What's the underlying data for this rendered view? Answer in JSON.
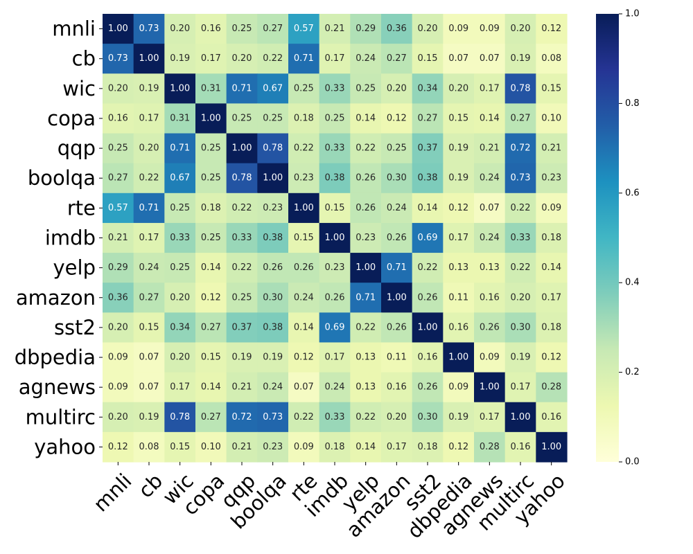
{
  "chart_data": {
    "type": "heatmap",
    "title": "",
    "xlabel": "",
    "ylabel": "",
    "colormap": "YlGnBu",
    "vmin": 0.0,
    "vmax": 1.0,
    "colorbar_ticks": [
      0.0,
      0.2,
      0.4,
      0.6,
      0.8,
      1.0
    ],
    "colorbar_tick_labels": [
      "0.0",
      "0.2",
      "0.4",
      "0.6",
      "0.8",
      "1.0"
    ],
    "rows": [
      "mnli",
      "cb",
      "wic",
      "copa",
      "qqp",
      "boolqa",
      "rte",
      "imdb",
      "yelp",
      "amazon",
      "sst2",
      "dbpedia",
      "agnews",
      "multirc",
      "yahoo"
    ],
    "columns": [
      "mnli",
      "cb",
      "wic",
      "copa",
      "qqp",
      "boolqa",
      "rte",
      "imdb",
      "yelp",
      "amazon",
      "sst2",
      "dbpedia",
      "agnews",
      "multirc",
      "yahoo"
    ],
    "values": [
      [
        1.0,
        0.73,
        0.2,
        0.16,
        0.25,
        0.27,
        0.57,
        0.21,
        0.29,
        0.36,
        0.2,
        0.09,
        0.09,
        0.2,
        0.12
      ],
      [
        0.73,
        1.0,
        0.19,
        0.17,
        0.2,
        0.22,
        0.71,
        0.17,
        0.24,
        0.27,
        0.15,
        0.07,
        0.07,
        0.19,
        0.08
      ],
      [
        0.2,
        0.19,
        1.0,
        0.31,
        0.71,
        0.67,
        0.25,
        0.33,
        0.25,
        0.2,
        0.34,
        0.2,
        0.17,
        0.78,
        0.15
      ],
      [
        0.16,
        0.17,
        0.31,
        1.0,
        0.25,
        0.25,
        0.18,
        0.25,
        0.14,
        0.12,
        0.27,
        0.15,
        0.14,
        0.27,
        0.1
      ],
      [
        0.25,
        0.2,
        0.71,
        0.25,
        1.0,
        0.78,
        0.22,
        0.33,
        0.22,
        0.25,
        0.37,
        0.19,
        0.21,
        0.72,
        0.21
      ],
      [
        0.27,
        0.22,
        0.67,
        0.25,
        0.78,
        1.0,
        0.23,
        0.38,
        0.26,
        0.3,
        0.38,
        0.19,
        0.24,
        0.73,
        0.23
      ],
      [
        0.57,
        0.71,
        0.25,
        0.18,
        0.22,
        0.23,
        1.0,
        0.15,
        0.26,
        0.24,
        0.14,
        0.12,
        0.07,
        0.22,
        0.09
      ],
      [
        0.21,
        0.17,
        0.33,
        0.25,
        0.33,
        0.38,
        0.15,
        1.0,
        0.23,
        0.26,
        0.69,
        0.17,
        0.24,
        0.33,
        0.18
      ],
      [
        0.29,
        0.24,
        0.25,
        0.14,
        0.22,
        0.26,
        0.26,
        0.23,
        1.0,
        0.71,
        0.22,
        0.13,
        0.13,
        0.22,
        0.14
      ],
      [
        0.36,
        0.27,
        0.2,
        0.12,
        0.25,
        0.3,
        0.24,
        0.26,
        0.71,
        1.0,
        0.26,
        0.11,
        0.16,
        0.2,
        0.17
      ],
      [
        0.2,
        0.15,
        0.34,
        0.27,
        0.37,
        0.38,
        0.14,
        0.69,
        0.22,
        0.26,
        1.0,
        0.16,
        0.26,
        0.3,
        0.18
      ],
      [
        0.09,
        0.07,
        0.2,
        0.15,
        0.19,
        0.19,
        0.12,
        0.17,
        0.13,
        0.11,
        0.16,
        1.0,
        0.09,
        0.19,
        0.12
      ],
      [
        0.09,
        0.07,
        0.17,
        0.14,
        0.21,
        0.24,
        0.07,
        0.24,
        0.13,
        0.16,
        0.26,
        0.09,
        1.0,
        0.17,
        0.28
      ],
      [
        0.2,
        0.19,
        0.78,
        0.27,
        0.72,
        0.73,
        0.22,
        0.33,
        0.22,
        0.2,
        0.3,
        0.19,
        0.17,
        1.0,
        0.16
      ],
      [
        0.12,
        0.08,
        0.15,
        0.1,
        0.21,
        0.23,
        0.09,
        0.18,
        0.14,
        0.17,
        0.18,
        0.12,
        0.28,
        0.16,
        1.0
      ]
    ]
  }
}
